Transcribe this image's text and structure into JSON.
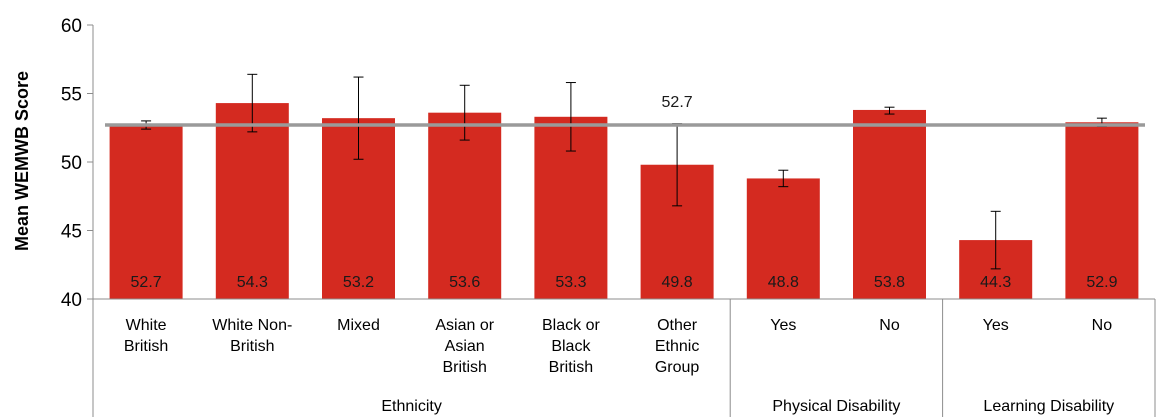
{
  "chart_data": {
    "type": "bar",
    "title": "",
    "ylabel": "Mean WEMWB Score",
    "ylim": [
      40,
      60
    ],
    "yticks": [
      40,
      45,
      50,
      55,
      60
    ],
    "grid": false,
    "bar_color": "#d42a20",
    "error_color": "#000000",
    "reference_line": {
      "value": 52.7,
      "label": "52.7",
      "color": "#9a9a9a"
    },
    "categories": [
      {
        "label": [
          "White",
          "British"
        ],
        "value": 52.7,
        "value_label": "52.7",
        "err_low": 52.4,
        "err_high": 53.0
      },
      {
        "label": [
          "White Non-",
          "British"
        ],
        "value": 54.3,
        "value_label": "54.3",
        "err_low": 52.2,
        "err_high": 56.4
      },
      {
        "label": [
          "Mixed"
        ],
        "value": 53.2,
        "value_label": "53.2",
        "err_low": 50.2,
        "err_high": 56.2
      },
      {
        "label": [
          "Asian or",
          "Asian",
          "British"
        ],
        "value": 53.6,
        "value_label": "53.6",
        "err_low": 51.6,
        "err_high": 55.6
      },
      {
        "label": [
          "Black or",
          "Black",
          "British"
        ],
        "value": 53.3,
        "value_label": "53.3",
        "err_low": 50.8,
        "err_high": 55.8
      },
      {
        "label": [
          "Other",
          "Ethnic",
          "Group"
        ],
        "value": 49.8,
        "value_label": "49.8",
        "err_low": 46.8,
        "err_high": 52.8
      },
      {
        "label": [
          "Yes"
        ],
        "value": 48.8,
        "value_label": "48.8",
        "err_low": 48.2,
        "err_high": 49.4
      },
      {
        "label": [
          "No"
        ],
        "value": 53.8,
        "value_label": "53.8",
        "err_low": 53.5,
        "err_high": 54.0
      },
      {
        "label": [
          "Yes"
        ],
        "value": 44.3,
        "value_label": "44.3",
        "err_low": 42.2,
        "err_high": 46.4
      },
      {
        "label": [
          "No"
        ],
        "value": 52.9,
        "value_label": "52.9",
        "err_low": 52.6,
        "err_high": 53.2
      }
    ],
    "groups": [
      {
        "label": "Ethnicity",
        "start": 0,
        "end": 5
      },
      {
        "label": "Physical Disability",
        "start": 6,
        "end": 7
      },
      {
        "label": "Learning Disability",
        "start": 8,
        "end": 9
      }
    ]
  }
}
